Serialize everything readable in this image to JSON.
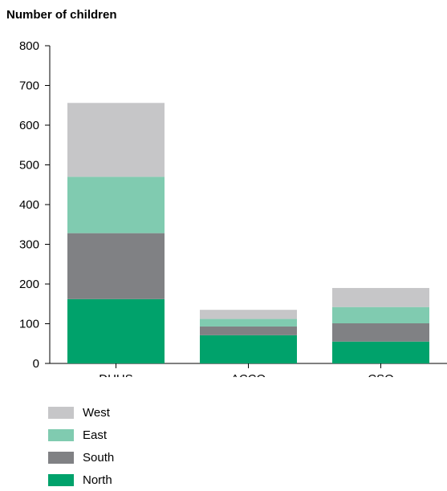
{
  "chart_data": {
    "type": "bar",
    "stacked": true,
    "title": "Number of children",
    "xlabel": "",
    "ylabel": "",
    "categories": [
      "DHHS",
      "ACCO",
      "CSO"
    ],
    "series": [
      {
        "name": "North",
        "color": "#00a26b",
        "values": [
          162,
          71,
          55
        ]
      },
      {
        "name": "South",
        "color": "#808184",
        "values": [
          166,
          22,
          46
        ]
      },
      {
        "name": "East",
        "color": "#80cbb0",
        "values": [
          142,
          19,
          41
        ]
      },
      {
        "name": "West",
        "color": "#c6c6c8",
        "values": [
          186,
          23,
          48
        ]
      }
    ],
    "ylim": [
      0,
      800
    ],
    "yticks": [
      0,
      100,
      200,
      300,
      400,
      500,
      600,
      700,
      800
    ],
    "grid": false,
    "legend_position": "bottom-left",
    "legend_order": [
      "West",
      "East",
      "South",
      "North"
    ]
  }
}
